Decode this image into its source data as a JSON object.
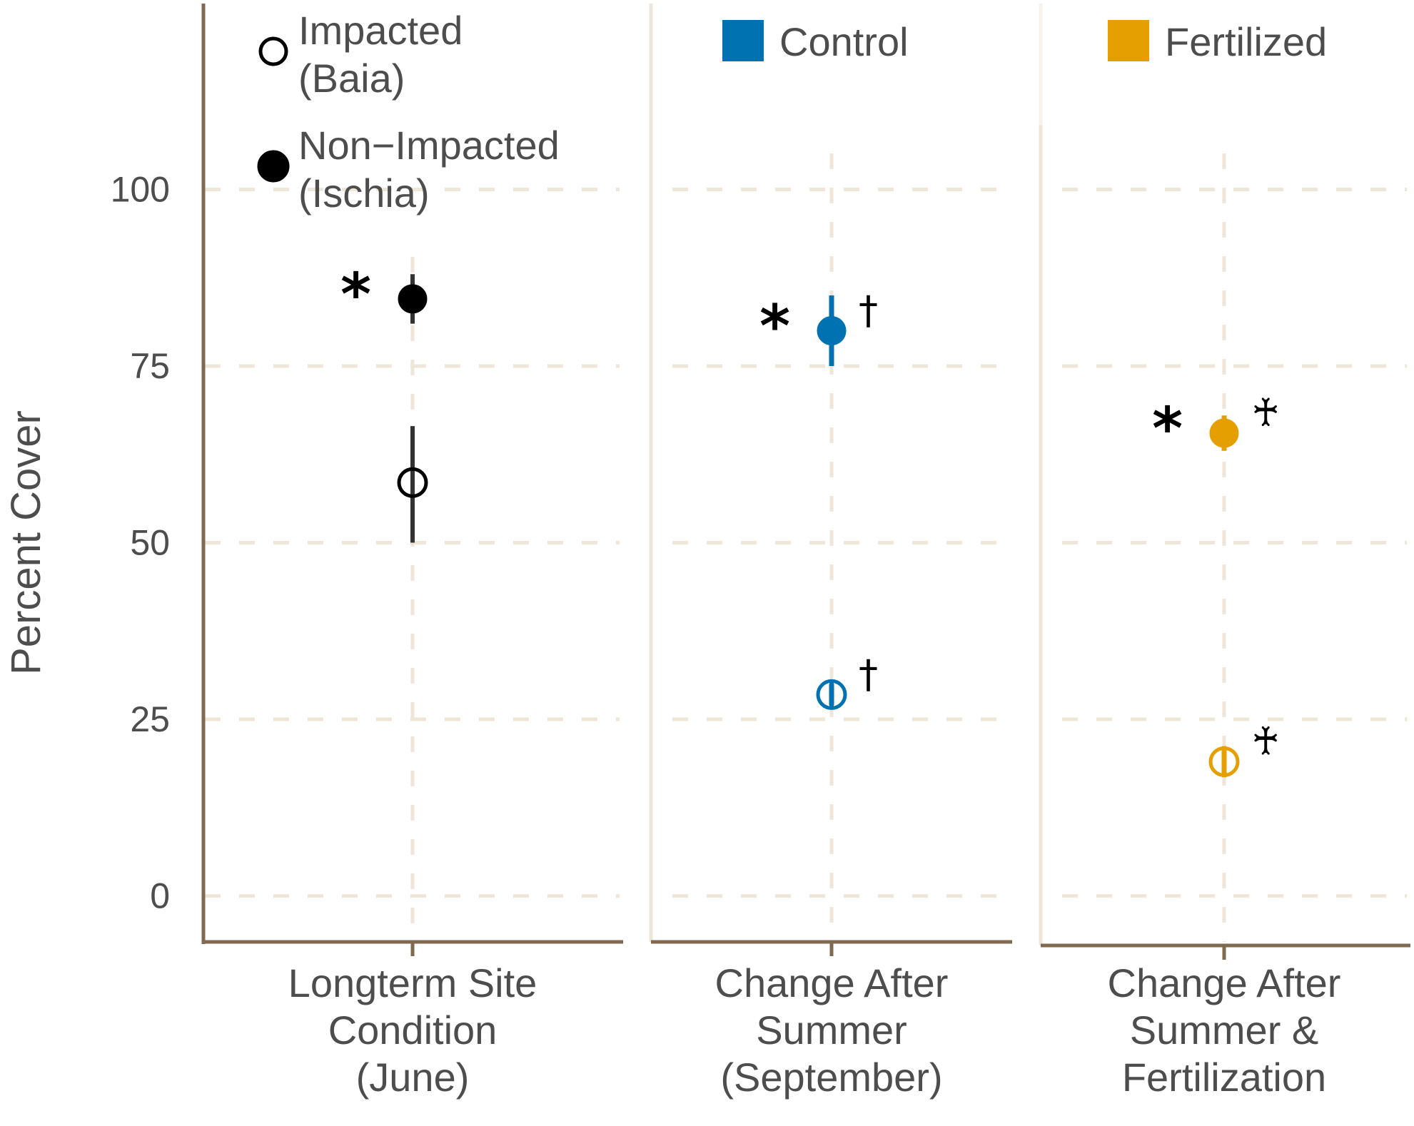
{
  "chart_data": {
    "type": "scatter",
    "ylabel": "Percent Cover",
    "ylim": [
      -6,
      126
    ],
    "y_ticks": [
      "0",
      "25",
      "50",
      "75",
      "100"
    ],
    "grid": true,
    "colors": {
      "impacted_group": "#000000",
      "control": "#0072B2",
      "fertilized": "#E69F00",
      "axis": "#7F6A4F",
      "grid": "#EFE6DA",
      "errorbar": "#333333"
    },
    "panels": [
      {
        "id": "longterm",
        "category_label": [
          "Longterm Site",
          "Condition",
          "(June)"
        ],
        "legend": [
          {
            "symbol": "open-circle",
            "lines": [
              "Impacted",
              "(Baia)"
            ]
          },
          {
            "symbol": "filled-circle",
            "lines": [
              "Non−Impacted",
              "(Ischia)"
            ]
          }
        ],
        "points": [
          {
            "series": "Non-Impacted (Ischia)",
            "fill": "filled",
            "color": "#000000",
            "y": 84.5,
            "ymin": 81,
            "ymax": 88,
            "marker_left": "*",
            "marker_right": ""
          },
          {
            "series": "Impacted (Baia)",
            "fill": "open",
            "color": "#000000",
            "y": 58.5,
            "ymin": 50,
            "ymax": 66.5,
            "marker_left": "",
            "marker_right": ""
          }
        ]
      },
      {
        "id": "summer",
        "category_label": [
          "Change After",
          "Summer",
          "(September)"
        ],
        "legend": [
          {
            "symbol": "square",
            "color": "#0072B2",
            "lines": [
              "Control"
            ]
          }
        ],
        "points": [
          {
            "series": "Non-Impacted (Ischia)",
            "fill": "filled",
            "color": "#0072B2",
            "y": 80,
            "ymin": 75,
            "ymax": 85,
            "marker_left": "*",
            "marker_right": "†"
          },
          {
            "series": "Impacted (Baia)",
            "fill": "open",
            "color": "#0072B2",
            "y": 28.5,
            "ymin": 27,
            "ymax": 30,
            "marker_left": "",
            "marker_right": "†"
          }
        ]
      },
      {
        "id": "fertilization",
        "category_label": [
          "Change After",
          "Summer &",
          "Fertilization"
        ],
        "legend": [
          {
            "symbol": "square",
            "color": "#E69F00",
            "lines": [
              "Fertilized"
            ]
          }
        ],
        "points": [
          {
            "series": "Non-Impacted (Ischia)",
            "fill": "filled",
            "color": "#E69F00",
            "y": 65.5,
            "ymin": 63,
            "ymax": 68,
            "marker_left": "*",
            "marker_right": "♰"
          },
          {
            "series": "Impacted (Baia)",
            "fill": "open",
            "color": "#E69F00",
            "y": 19,
            "ymin": 17,
            "ymax": 21,
            "marker_left": "",
            "marker_right": "♰"
          }
        ]
      }
    ]
  }
}
